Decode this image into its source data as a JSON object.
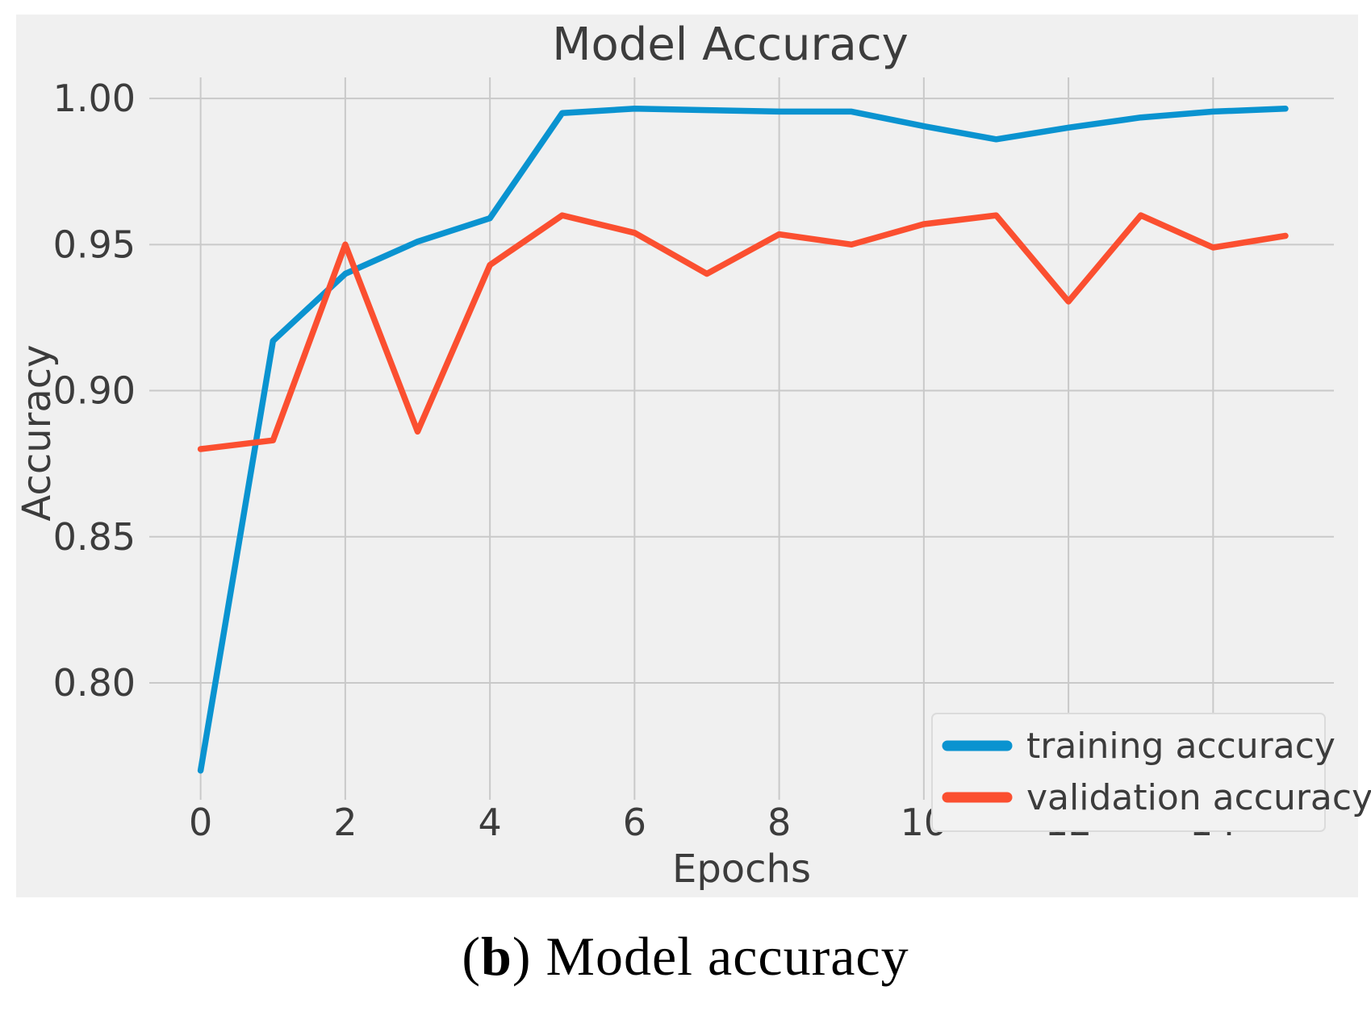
{
  "figure": {
    "title": "Model Accuracy",
    "xlabel": "Epochs",
    "ylabel": "Accuracy"
  },
  "legend": {
    "items": [
      {
        "label": "training accuracy",
        "color": "#0a93d0"
      },
      {
        "label": "validation accuracy",
        "color": "#fb4f30"
      }
    ]
  },
  "caption": {
    "open_paren": "(",
    "letter": "b",
    "close_paren": ") ",
    "text": "Model accuracy"
  },
  "colors": {
    "figure_background": "#f0f0f0",
    "grid": "#c9c9c9",
    "text": "#3c3c3c",
    "legend_background": "#f2f2f2",
    "legend_border": "#dbdbdb",
    "training": "#0a93d0",
    "validation": "#fb4f30"
  },
  "chart_data": {
    "type": "line",
    "title": "Model Accuracy",
    "xlabel": "Epochs",
    "ylabel": "Accuracy",
    "x": [
      0,
      1,
      2,
      3,
      4,
      5,
      6,
      7,
      8,
      9,
      10,
      11,
      12,
      13,
      14,
      15
    ],
    "series": [
      {
        "name": "training accuracy",
        "color": "#0a93d0",
        "values": [
          0.77,
          0.917,
          0.94,
          0.951,
          0.959,
          0.995,
          0.9965,
          0.996,
          0.9955,
          0.9955,
          0.9905,
          0.986,
          0.99,
          0.9935,
          0.9955,
          0.9965
        ]
      },
      {
        "name": "validation accuracy",
        "color": "#fb4f30",
        "values": [
          0.88,
          0.883,
          0.95,
          0.886,
          0.943,
          0.96,
          0.954,
          0.94,
          0.9535,
          0.95,
          0.957,
          0.96,
          0.9305,
          0.96,
          0.949,
          0.953
        ]
      }
    ],
    "x_ticks": [
      0,
      2,
      4,
      6,
      8,
      10,
      12,
      14
    ],
    "x_tick_labels": [
      "0",
      "2",
      "4",
      "6",
      "8",
      "10",
      "12",
      "14"
    ],
    "y_ticks": [
      1.0,
      0.95,
      0.9,
      0.85,
      0.8
    ],
    "y_tick_labels": [
      "1.00",
      "0.95",
      "0.90",
      "0.85",
      "0.80"
    ],
    "xlim": [
      -0.71,
      15.67
    ],
    "ylim": [
      0.76,
      1.0072
    ],
    "grid": true,
    "legend_position": "lower right"
  }
}
